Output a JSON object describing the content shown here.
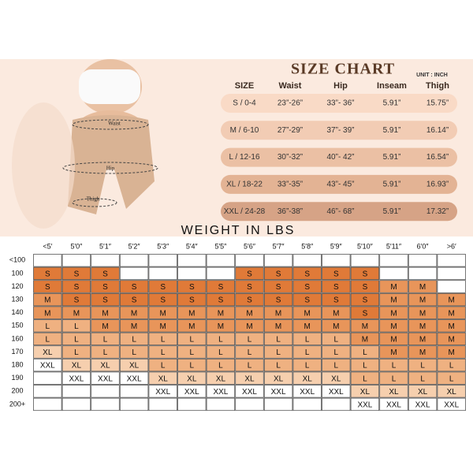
{
  "figure_labels": [
    "Waist",
    "Hip",
    "Thigh"
  ],
  "size_chart": {
    "title": "SIZE CHART",
    "unit": "UNIT : INCH",
    "headers": [
      "SIZE",
      "Waist",
      "Hip",
      "Inseam",
      "Thigh"
    ],
    "rows": [
      [
        "S / 0-4",
        "23”-26”",
        "33”- 36”",
        "5.91”",
        "15.75”"
      ],
      [
        "M / 6-10",
        "27”-29”",
        "37”- 39”",
        "5.91”",
        "16.14”"
      ],
      [
        "L / 12-16",
        "30”-32”",
        "40”- 42”",
        "5.91”",
        "16.54”"
      ],
      [
        "XL / 18-22",
        "33”-35”",
        "43”- 45”",
        "5.91”",
        "16.93”"
      ],
      [
        "XXL / 24-28",
        "36”-38”",
        "46”- 68”",
        "5.91”",
        "17.32”"
      ]
    ]
  },
  "weight_chart": {
    "title": "WEIGHT IN LBS",
    "heights": [
      "<5′",
      "5′0″",
      "5′1″",
      "5′2″",
      "5′3″",
      "5′4″",
      "5′5″",
      "5′6″",
      "5′7″",
      "5′8″",
      "5′9″",
      "5′10″",
      "5′11″",
      "6′0″",
      ">6′"
    ],
    "weights": [
      "<100",
      "100",
      "120",
      "130",
      "140",
      "150",
      "160",
      "170",
      "180",
      "190",
      "200",
      "200+"
    ],
    "cells": [
      [
        null,
        null,
        null,
        null,
        null,
        null,
        null,
        null,
        null,
        null,
        null,
        null,
        null,
        null,
        null
      ],
      [
        "S",
        "S",
        "S",
        null,
        null,
        null,
        null,
        "S",
        "S",
        "S",
        "S",
        "S",
        null,
        null,
        null
      ],
      [
        "S",
        "S",
        "S",
        "S",
        "S",
        "S",
        "S",
        "S",
        "S",
        "S",
        "S",
        "S",
        "M",
        "M",
        null
      ],
      [
        "M",
        "S",
        "S",
        "S",
        "S",
        "S",
        "S",
        "S",
        "S",
        "S",
        "S",
        "S",
        "M",
        "M",
        "M"
      ],
      [
        "M",
        "M",
        "M",
        "M",
        "M",
        "M",
        "M",
        "M",
        "M",
        "M",
        "M",
        "S",
        "M",
        "M",
        "M"
      ],
      [
        "L",
        "L",
        "M",
        "M",
        "M",
        "M",
        "M",
        "M",
        "M",
        "M",
        "M",
        "M",
        "M",
        "M",
        "M"
      ],
      [
        "L",
        "L",
        "L",
        "L",
        "L",
        "L",
        "L",
        "L",
        "L",
        "L",
        "L",
        "M",
        "M",
        "M",
        "M"
      ],
      [
        "XL",
        "L",
        "L",
        "L",
        "L",
        "L",
        "L",
        "L",
        "L",
        "L",
        "L",
        "L",
        "M",
        "M",
        "M"
      ],
      [
        "XXL",
        "XL",
        "XL",
        "XL",
        "L",
        "L",
        "L",
        "L",
        "L",
        "L",
        "L",
        "L",
        "L",
        "L",
        "L"
      ],
      [
        null,
        "XXL",
        "XXL",
        "XXL",
        "XL",
        "XL",
        "XL",
        "XL",
        "XL",
        "XL",
        "XL",
        "L",
        "L",
        "L",
        "L"
      ],
      [
        null,
        null,
        null,
        null,
        "XXL",
        "XXL",
        "XXL",
        "XXL",
        "XXL",
        "XXL",
        "XXL",
        "XL",
        "XL",
        "XL",
        "XL"
      ],
      [
        null,
        null,
        null,
        null,
        null,
        null,
        null,
        null,
        null,
        null,
        null,
        "XXL",
        "XXL",
        "XXL",
        "XXL"
      ]
    ]
  }
}
